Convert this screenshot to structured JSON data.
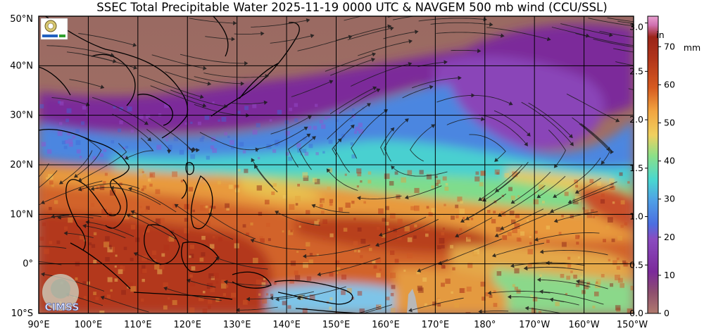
{
  "title": "SSEC Total Precipitable Water  2025-11-19 0000 UTC & NAVGEM 500 mb wind (CCU/SSL)",
  "map": {
    "lat_labels": [
      "50°N",
      "40°N",
      "30°N",
      "20°N",
      "10°N",
      "0°",
      "10°S"
    ],
    "lon_labels": [
      "90°E",
      "100°E",
      "110°E",
      "120°E",
      "130°E",
      "140°E",
      "150°E",
      "160°E",
      "170°E",
      "180°",
      "170°W",
      "160°W",
      "150°W"
    ],
    "extent": {
      "lon_min": 90,
      "lon_max": 210,
      "lat_min": -10,
      "lat_max": 50
    },
    "logo_bottom_text": "CIMSS"
  },
  "colorbar": {
    "unit_in": "in",
    "unit_mm": "mm",
    "in_ticks": [
      "3.0",
      "2.5",
      "2.0",
      "1.5",
      "1.0",
      "0.5",
      "0.0"
    ],
    "mm_ticks": [
      "70",
      "60",
      "50",
      "40",
      "30",
      "20",
      "10",
      "0"
    ],
    "colors": [
      "#b07a6e",
      "#7b2a9a",
      "#8a4bc0",
      "#4fa0e6",
      "#49d8d0",
      "#8be088",
      "#f0d060",
      "#f2a540",
      "#d65a20",
      "#b0341a",
      "#e8a0d0"
    ]
  }
}
